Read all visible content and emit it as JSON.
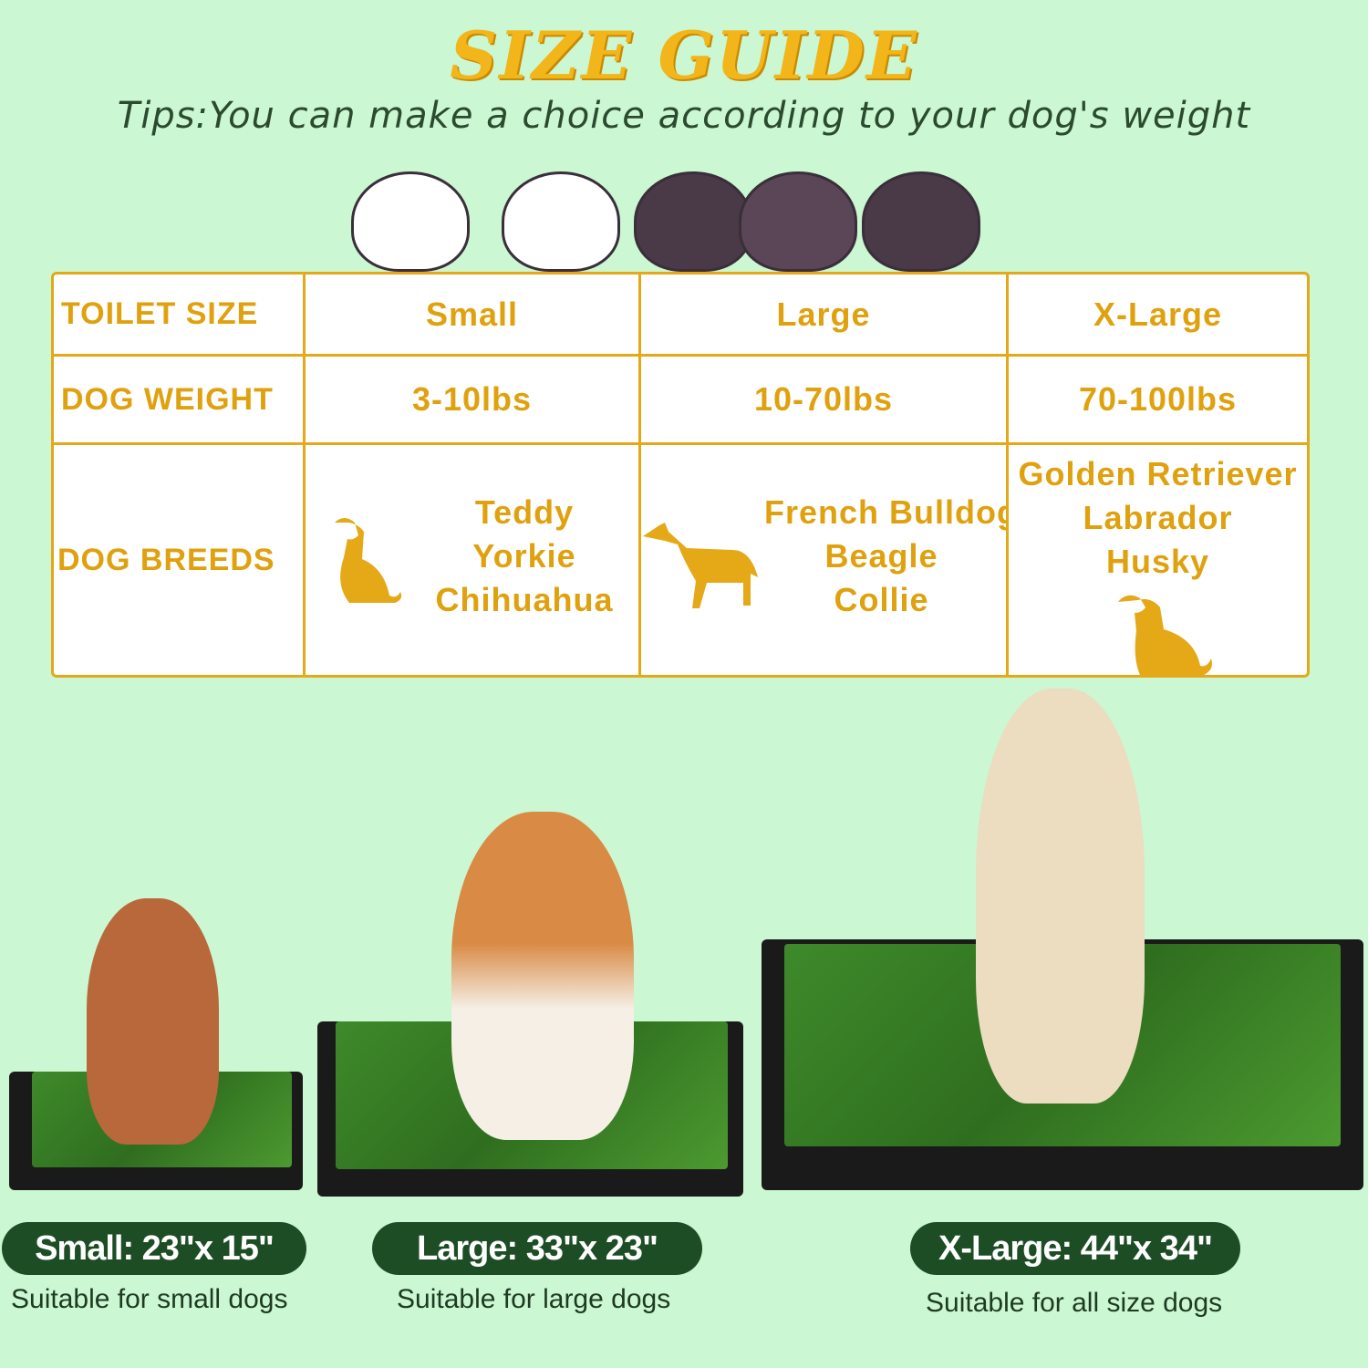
{
  "title": "SIZE GUIDE",
  "tips": "Tips:You can make a choice according to your dog's weight",
  "colors": {
    "background": "#cbf7d3",
    "gold": "#e5a817",
    "pill": "#1d4d24"
  },
  "table": {
    "headers": [
      "TOILET SIZE",
      "Small",
      "Large",
      "X-Large"
    ],
    "weight": [
      "DOG WEIGHT",
      "3-10lbs",
      "10-70lbs",
      "70-100lbs"
    ],
    "breeds_label": "DOG BREEDS",
    "breeds": [
      [
        "Teddy",
        "Yorkie",
        "Chihuahua"
      ],
      [
        "French Bulldog",
        "Beagle",
        "Collie"
      ],
      [
        "Golden Retriever",
        "Labrador",
        "Husky"
      ]
    ]
  },
  "products": [
    {
      "size": "Small: 23\"x 15\"",
      "note": "Suitable for small dogs"
    },
    {
      "size": "Large: 33\"x 23\"",
      "note": "Suitable for large dogs"
    },
    {
      "size": "X-Large: 44\"x 34\"",
      "note": "Suitable for all size dogs"
    }
  ]
}
